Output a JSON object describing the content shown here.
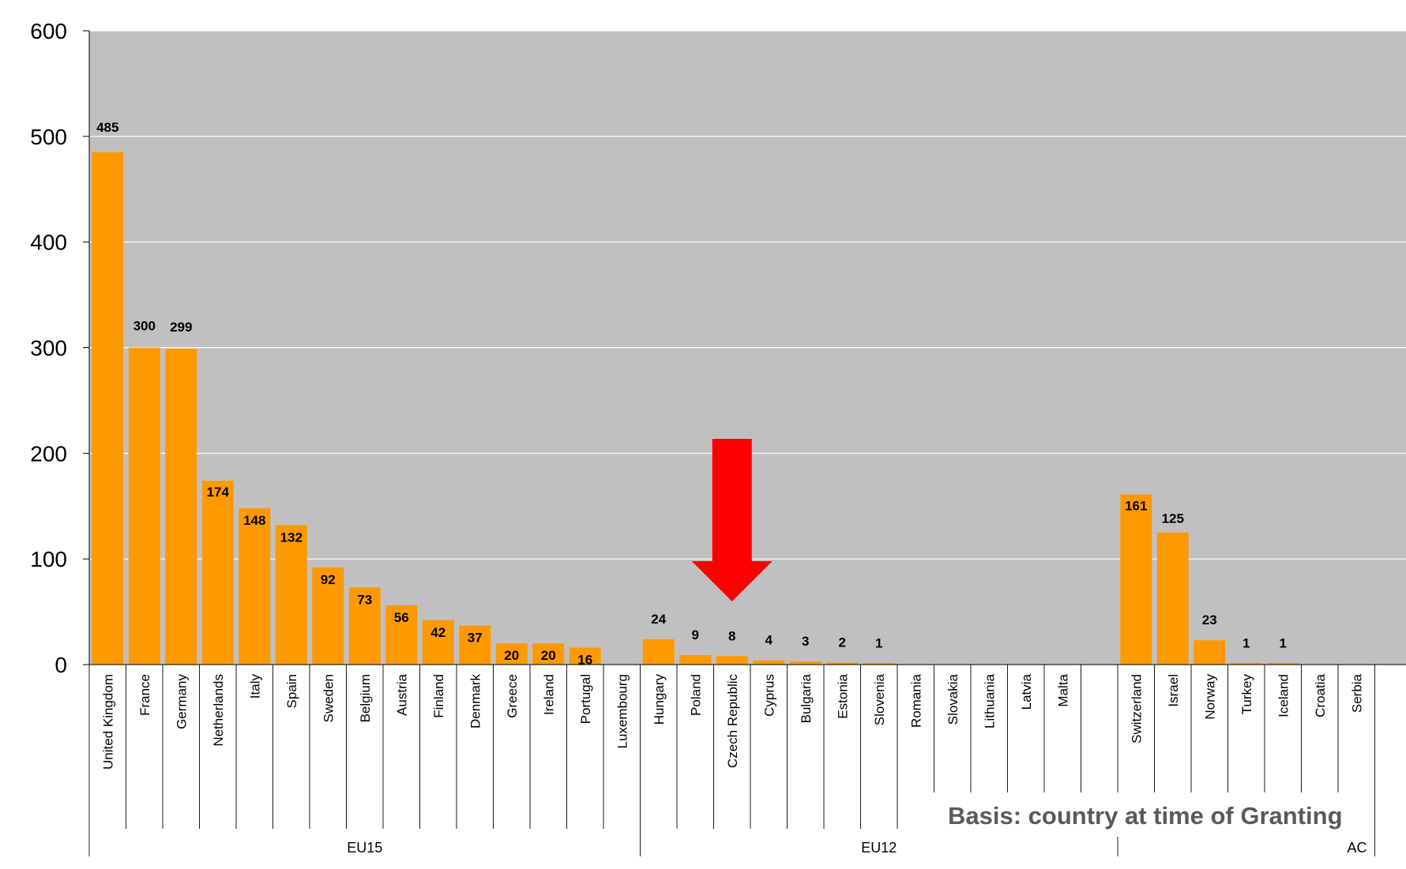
{
  "chart_data": {
    "type": "bar",
    "ylim": [
      0,
      600
    ],
    "yticks": [
      0,
      100,
      200,
      300,
      400,
      500,
      600
    ],
    "grid": true,
    "categories": [
      "United Kingdom",
      "France",
      "Germany",
      "Netherlands",
      "Italy",
      "Spain",
      "Sweden",
      "Belgium",
      "Austria",
      "Finland",
      "Denmark",
      "Greece",
      "Ireland",
      "Portugal",
      "Luxembourg",
      "Hungary",
      "Poland",
      "Czech Republic",
      "Cyprus",
      "Bulgaria",
      "Estonia",
      "Slovenia",
      "Romania",
      "Slovakia",
      "Lithuania",
      "Latvia",
      "Malta",
      "",
      "Switzerland",
      "Israel",
      "Norway",
      "Turkey",
      "Iceland",
      "Croatia",
      "Serbia"
    ],
    "values": [
      485,
      300,
      299,
      174,
      148,
      132,
      92,
      73,
      56,
      42,
      37,
      20,
      20,
      16,
      null,
      24,
      9,
      8,
      4,
      3,
      2,
      1,
      null,
      null,
      null,
      null,
      null,
      null,
      161,
      125,
      23,
      1,
      1,
      null,
      null
    ],
    "data_labels": [
      "485",
      "300",
      "299",
      "174",
      "148",
      "132",
      "92",
      "73",
      "56",
      "42",
      "37",
      "20",
      "20",
      "16",
      "",
      "24",
      "9",
      "8",
      "4",
      "3",
      "2",
      "1",
      "",
      "",
      "",
      "",
      "",
      "",
      "161",
      "125",
      "23",
      "1",
      "1",
      "",
      ""
    ],
    "groups": [
      {
        "name": "EU15",
        "count": 15
      },
      {
        "name": "EU12",
        "count": 13
      },
      {
        "name": "AC",
        "count": 7
      }
    ],
    "annotations": [
      {
        "type": "arrow",
        "color": "#ff0000",
        "target_category": "Czech Republic"
      },
      {
        "type": "text",
        "text": "Basis: country at time of Granting"
      }
    ],
    "colors": {
      "bar": "#ff9900",
      "plot_background": "#c0c0c0",
      "gridline": "#ffffff",
      "arrow": "#ff0000",
      "note_text": "#5a5a5a"
    }
  }
}
